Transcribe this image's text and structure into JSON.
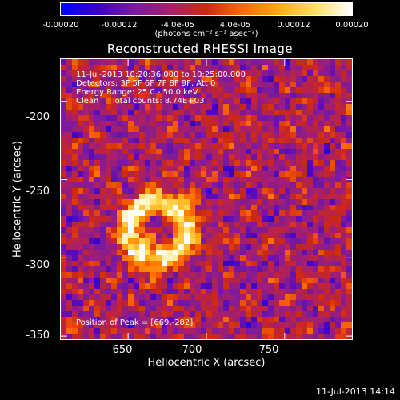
{
  "colorbar": {
    "ticks": [
      "-0.00020",
      "-0.00012",
      "-4.0e-05",
      "4.0e-05",
      "0.00012",
      "0.00020"
    ],
    "units": "(photons cm⁻² s⁻¹ asec⁻²)",
    "colors": [
      "#0000ff",
      "#3a00cc",
      "#7a1aa0",
      "#a81f6a",
      "#d02810",
      "#ff6a00",
      "#ffaa10",
      "#ffe060",
      "#ffffff"
    ]
  },
  "chart_data": {
    "type": "heatmap",
    "title": "Reconstructed RHESSI Image",
    "xlabel": "Heliocentric X (arcsec)",
    "ylabel": "Heliocentric Y (arcsec)",
    "x_ticks": [
      "650",
      "700",
      "750"
    ],
    "y_ticks": [
      "-200",
      "-250",
      "-300",
      "-350"
    ],
    "x_tick_values": [
      650,
      700,
      750
    ],
    "y_tick_values": [
      -200,
      -250,
      -300,
      -350
    ],
    "xlim": [
      607,
      793
    ],
    "ylim": [
      -352,
      -173
    ],
    "color_range": [
      -0.0002,
      0.0002
    ],
    "peak": [
      669,
      -282
    ],
    "annotations": [
      "11-Jul-2013 10:20:36.000 to 10:25:00.000",
      "Detectors: 3F 5F 6F 7F 8F 9F, Att 0",
      "Energy Range: 25.0 - 50.0 keV",
      "Clean     Total counts: 8.74E+03"
    ],
    "peak_label": "Position of Peak = [669,-282]"
  },
  "timestamp": "11-Jul-2013 14:14"
}
